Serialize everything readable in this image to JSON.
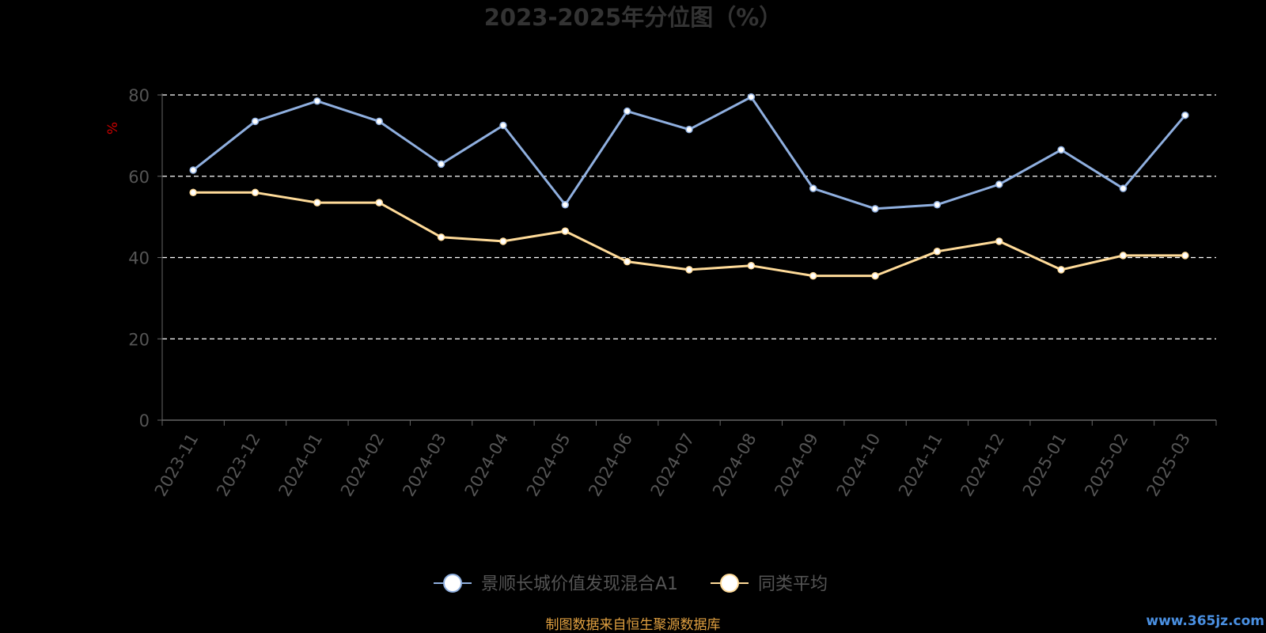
{
  "chart_data": {
    "type": "line",
    "title": "2023-2025年分位图（%）",
    "ylabel": "%",
    "xlabel": "",
    "ylim": [
      0,
      80
    ],
    "yticks": [
      0,
      20,
      40,
      60,
      80
    ],
    "categories": [
      "2023-11",
      "2023-12",
      "2024-01",
      "2024-02",
      "2024-03",
      "2024-04",
      "2024-05",
      "2024-06",
      "2024-07",
      "2024-08",
      "2024-09",
      "2024-10",
      "2024-11",
      "2024-12",
      "2025-01",
      "2025-02",
      "2025-03"
    ],
    "series": [
      {
        "name": "景顺长城价值发现混合A1",
        "color": "#8fafdf",
        "values": [
          61.5,
          73.5,
          78.5,
          73.5,
          63,
          72.5,
          53,
          76,
          71.5,
          79.5,
          57,
          52,
          53,
          58,
          66.5,
          57,
          75
        ]
      },
      {
        "name": "同类平均",
        "color": "#ffdb99",
        "values": [
          56,
          56,
          53.5,
          53.5,
          45,
          44,
          46.5,
          39,
          37,
          38,
          35.5,
          35.5,
          41.5,
          44,
          37,
          40.5,
          40.5
        ]
      }
    ],
    "grid": true,
    "legend_position": "bottom"
  },
  "footer": {
    "source": "制图数据来自恒生聚源数据库",
    "watermark": "www.365jz.com"
  },
  "colors": {
    "background": "#000000",
    "title": "#333333",
    "axis": "#666666",
    "tick_label": "#555555",
    "ylabel": "#cc0000",
    "footer": "#e0a040",
    "watermark": "#4a90e2"
  }
}
